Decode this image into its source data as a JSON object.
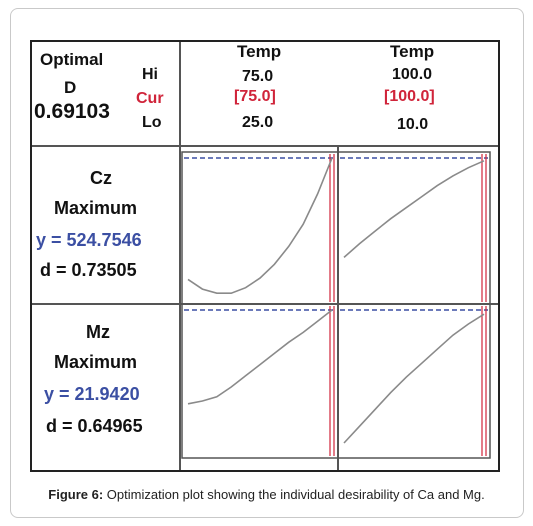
{
  "header": {
    "optimal_label": "Optimal",
    "d_label": "D",
    "d_value": "0.69103",
    "hi_label": "Hi",
    "cur_label": "Cur",
    "lo_label": "Lo"
  },
  "factors": [
    {
      "name": "Temp",
      "hi": "75.0",
      "cur": "[75.0]",
      "lo": "25.0"
    },
    {
      "name": "Temp",
      "hi": "100.0",
      "cur": "[100.0]",
      "lo": "10.0"
    }
  ],
  "responses": [
    {
      "name": "Cz",
      "goal": "Maximum",
      "y_text": "y = 524.7546",
      "d_text": "d = 0.73505"
    },
    {
      "name": "Mz",
      "goal": "Maximum",
      "y_text": "y = 21.9420",
      "d_text": "d = 0.64965"
    }
  ],
  "caption": {
    "label": "Figure 6:",
    "text": "Optimization plot showing the individual desirability of Ca and Mg."
  },
  "colors": {
    "curve": "#8a8a8a",
    "current_line": "#d0243a",
    "target_line": "#3b4fa3",
    "grid": "#555555"
  },
  "chart_data": {
    "type": "line",
    "title": "",
    "panels": [
      {
        "response": "Cz",
        "factor": 1,
        "x": [
          25,
          30,
          35,
          40,
          45,
          50,
          55,
          60,
          65,
          70,
          75
        ],
        "y": [
          0.12,
          0.05,
          0.02,
          0.02,
          0.06,
          0.13,
          0.23,
          0.36,
          0.52,
          0.74,
          1.0
        ]
      },
      {
        "response": "Cz",
        "factor": 2,
        "x": [
          10,
          20,
          30,
          40,
          50,
          60,
          70,
          80,
          90,
          100
        ],
        "y": [
          0.28,
          0.38,
          0.47,
          0.56,
          0.64,
          0.72,
          0.8,
          0.87,
          0.93,
          0.98
        ]
      },
      {
        "response": "Mz",
        "factor": 1,
        "x": [
          25,
          30,
          35,
          40,
          45,
          50,
          55,
          60,
          65,
          70,
          75
        ],
        "y": [
          0.33,
          0.35,
          0.38,
          0.45,
          0.53,
          0.61,
          0.69,
          0.77,
          0.84,
          0.92,
          1.0
        ]
      },
      {
        "response": "Mz",
        "factor": 2,
        "x": [
          10,
          20,
          30,
          40,
          50,
          60,
          70,
          80,
          90,
          100
        ],
        "y": [
          0.05,
          0.17,
          0.29,
          0.41,
          0.52,
          0.62,
          0.72,
          0.82,
          0.9,
          0.97
        ]
      }
    ],
    "current": [
      75,
      100
    ],
    "x_ranges": [
      [
        25,
        75
      ],
      [
        10,
        100
      ]
    ],
    "ylim": [
      0,
      1
    ]
  }
}
